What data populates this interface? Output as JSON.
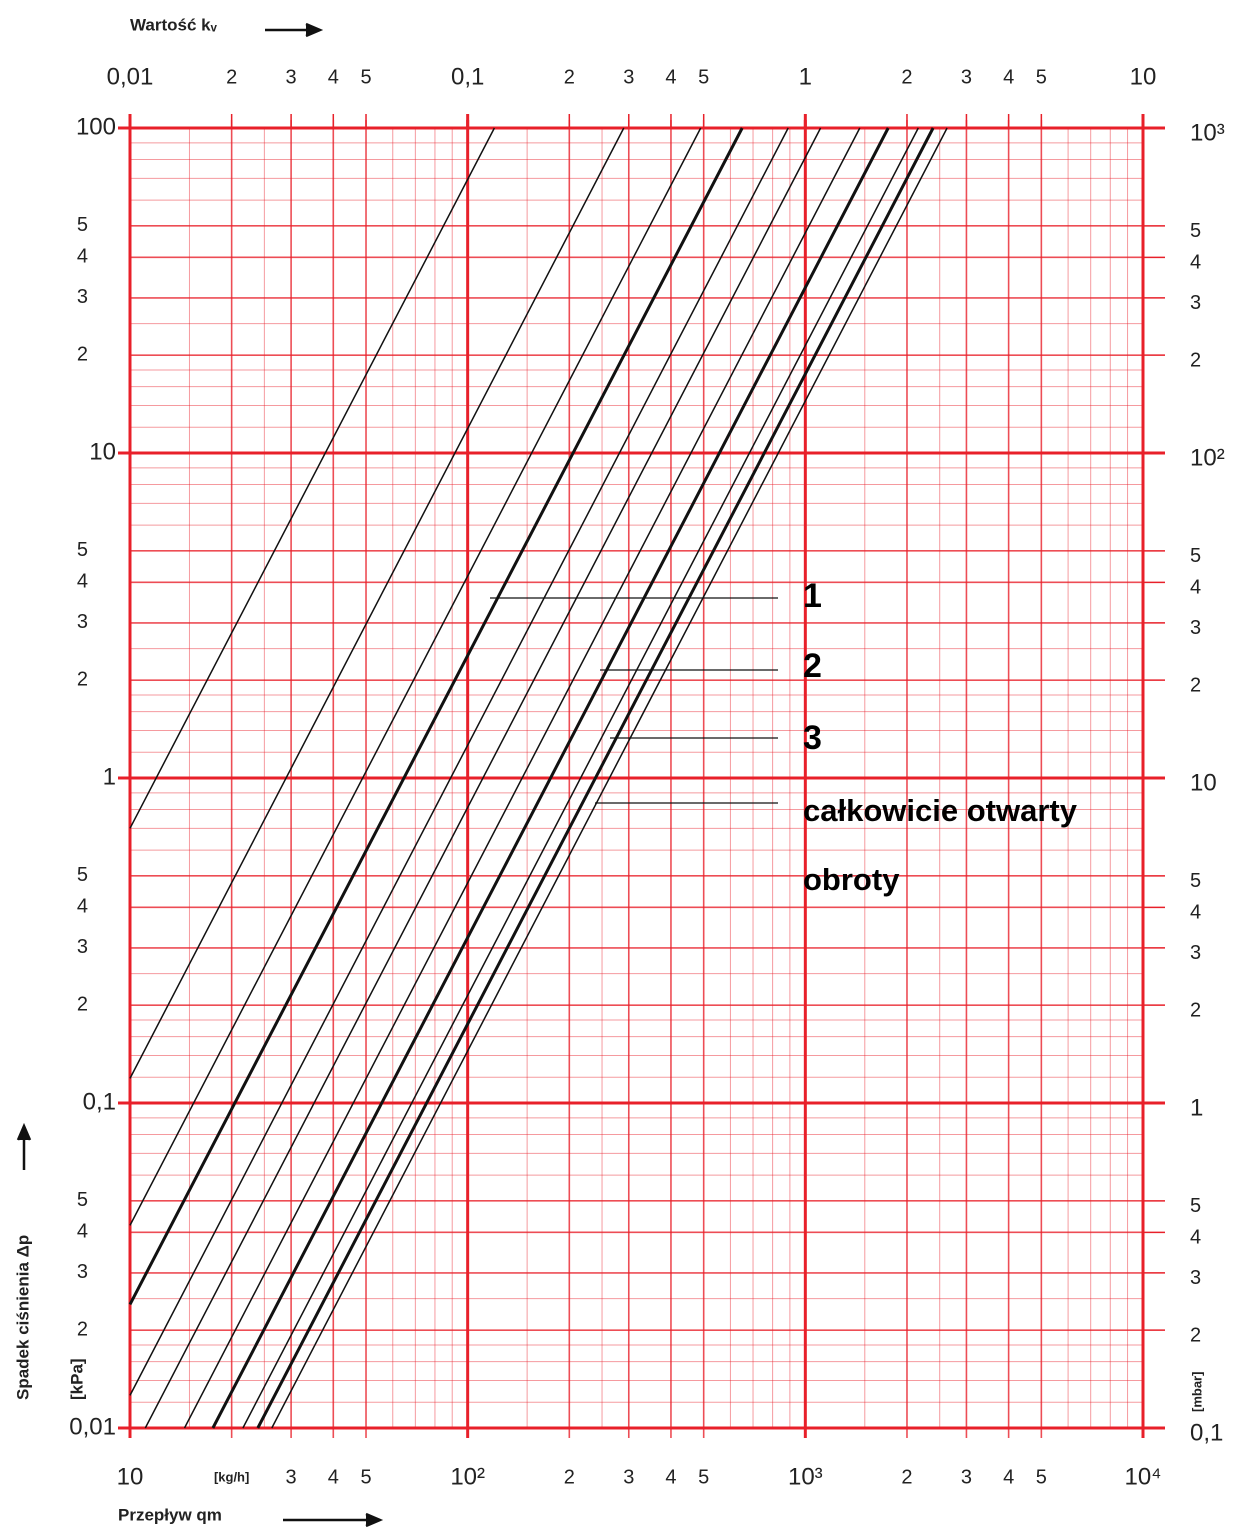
{
  "chart_data": {
    "type": "line",
    "x_label": "Przepływ qm",
    "x2_label": "Wartość kᵥ",
    "y_label": "Spadek ciśnienia Δp",
    "y_unit": "[kPa]",
    "y2_unit": "[mbar]",
    "log_x": true,
    "log_y": true,
    "grid": true,
    "grid_color": "#e8202a",
    "xlim": [
      10,
      10000
    ],
    "xticks": [
      10,
      {
        "value": 20,
        "label": "[kg/h]"
      },
      {
        "value": 30,
        "label": "3"
      },
      {
        "value": 40,
        "label": "4"
      },
      {
        "value": 50,
        "label": "5"
      },
      {
        "value": 100,
        "label": "10²"
      },
      {
        "value": 200,
        "label": "2"
      },
      {
        "value": 300,
        "label": "3"
      },
      {
        "value": 400,
        "label": "4"
      },
      {
        "value": 500,
        "label": "5"
      },
      {
        "value": 1000,
        "label": "10³"
      },
      {
        "value": 2000,
        "label": "2"
      },
      {
        "value": 3000,
        "label": "3"
      },
      {
        "value": 4000,
        "label": "4"
      },
      {
        "value": 5000,
        "label": "5"
      },
      {
        "value": 10000,
        "label": "10⁴"
      }
    ],
    "x2lim": [
      0.01,
      10
    ],
    "x2ticks": [
      {
        "value": 0.01,
        "label": "0,01"
      },
      {
        "value": 0.02,
        "label": "2"
      },
      {
        "value": 0.03,
        "label": "3"
      },
      {
        "value": 0.04,
        "label": "4"
      },
      {
        "value": 0.05,
        "label": "5"
      },
      {
        "value": 0.1,
        "label": "0,1"
      },
      {
        "value": 0.2,
        "label": "2"
      },
      {
        "value": 0.3,
        "label": "3"
      },
      {
        "value": 0.4,
        "label": "4"
      },
      {
        "value": 0.5,
        "label": "5"
      },
      1,
      {
        "value": 2,
        "label": "2"
      },
      {
        "value": 3,
        "label": "3"
      },
      {
        "value": 4,
        "label": "4"
      },
      {
        "value": 5,
        "label": "5"
      },
      10
    ],
    "ylim": [
      0.01,
      100
    ],
    "yticks": [
      {
        "value": 0.01,
        "label": "0,01"
      },
      {
        "value": 0.02,
        "label": "2"
      },
      {
        "value": 0.03,
        "label": "3"
      },
      {
        "value": 0.04,
        "label": "4"
      },
      {
        "value": 0.05,
        "label": "5"
      },
      {
        "value": 0.1,
        "label": "0,1"
      },
      {
        "value": 0.2,
        "label": "2"
      },
      {
        "value": 0.3,
        "label": "3"
      },
      {
        "value": 0.4,
        "label": "4"
      },
      {
        "value": 0.5,
        "label": "5"
      },
      1,
      {
        "value": 2,
        "label": "2"
      },
      {
        "value": 3,
        "label": "3"
      },
      {
        "value": 4,
        "label": "4"
      },
      {
        "value": 5,
        "label": "5"
      },
      10,
      {
        "value": 20,
        "label": "2"
      },
      {
        "value": 30,
        "label": "3"
      },
      {
        "value": 40,
        "label": "4"
      },
      {
        "value": 50,
        "label": "5"
      },
      100
    ],
    "y2lim": [
      0.1,
      1000
    ],
    "y2ticks": [
      {
        "value": 0.1,
        "label": "0,1"
      },
      {
        "value": 0.2,
        "label": "2"
      },
      {
        "value": 0.3,
        "label": "3"
      },
      {
        "value": 0.4,
        "label": "4"
      },
      {
        "value": 0.5,
        "label": "5"
      },
      1,
      {
        "value": 2,
        "label": "2"
      },
      {
        "value": 3,
        "label": "3"
      },
      {
        "value": 4,
        "label": "4"
      },
      {
        "value": 5,
        "label": "5"
      },
      10,
      {
        "value": 20,
        "label": "2"
      },
      {
        "value": 30,
        "label": "3"
      },
      {
        "value": 40,
        "label": "4"
      },
      {
        "value": 50,
        "label": "5"
      },
      {
        "value": 100,
        "label": "10²"
      },
      {
        "value": 200,
        "label": "2"
      },
      {
        "value": 300,
        "label": "3"
      },
      {
        "value": 400,
        "label": "4"
      },
      {
        "value": 500,
        "label": "5"
      },
      {
        "value": 1000,
        "label": "10³"
      }
    ],
    "series": [
      {
        "color": "#111",
        "line_width": 1.5,
        "x": [
          10,
          120
        ],
        "values": [
          0.7,
          100
        ]
      },
      {
        "color": "#111",
        "line_width": 1.5,
        "x": [
          10,
          290
        ],
        "values": [
          0.119,
          100
        ]
      },
      {
        "color": "#111",
        "line_width": 1.5,
        "x": [
          10,
          490
        ],
        "values": [
          0.042,
          100
        ]
      },
      {
        "color": "#111",
        "line_width": 3,
        "x": [
          10,
          650
        ],
        "values": [
          0.024,
          100
        ]
      },
      {
        "color": "#111",
        "line_width": 1.5,
        "x": [
          10,
          890
        ],
        "values": [
          0.0126,
          100
        ]
      },
      {
        "color": "#111",
        "line_width": 1.5,
        "x": [
          11.1,
          1110
        ],
        "values": [
          0.01,
          100
        ]
      },
      {
        "color": "#111",
        "line_width": 1.5,
        "x": [
          14.5,
          1450
        ],
        "values": [
          0.01,
          100
        ]
      },
      {
        "color": "#111",
        "line_width": 3,
        "x": [
          17.6,
          1760
        ],
        "values": [
          0.01,
          100
        ]
      },
      {
        "color": "#111",
        "line_width": 1.5,
        "x": [
          21.6,
          2160
        ],
        "values": [
          0.01,
          100
        ]
      },
      {
        "color": "#111",
        "line_width": 3,
        "x": [
          23.9,
          2390
        ],
        "values": [
          0.01,
          100
        ]
      },
      {
        "color": "#111",
        "line_width": 1.5,
        "x": [
          26.3,
          2630
        ],
        "values": [
          0.01,
          100
        ]
      }
    ],
    "annotations": [
      "1",
      "2",
      "3",
      "całkowicie otwarty",
      "obroty"
    ]
  }
}
